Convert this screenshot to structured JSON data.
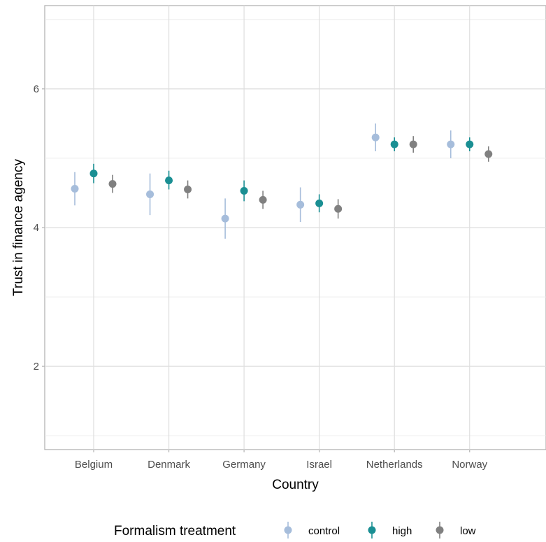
{
  "chart_data": {
    "type": "scatter",
    "title": "",
    "xlabel": "Country",
    "ylabel": "Trust in finance agency",
    "categories": [
      "Belgium",
      "Denmark",
      "Germany",
      "Israel",
      "Netherlands",
      "Norway"
    ],
    "ylim": [
      0.8,
      7.2
    ],
    "yticks": [
      2,
      4,
      6
    ],
    "grid": true,
    "legend": {
      "title": "Formalism treatment",
      "position": "bottom"
    },
    "series": [
      {
        "name": "control",
        "color": "#a6bddb",
        "values": [
          4.56,
          4.48,
          4.13,
          4.33,
          5.3,
          5.2
        ],
        "lower": [
          4.32,
          4.18,
          3.84,
          4.08,
          5.1,
          5.0
        ],
        "upper": [
          4.8,
          4.78,
          4.42,
          4.58,
          5.5,
          5.4
        ]
      },
      {
        "name": "high",
        "color": "#1a8f93",
        "values": [
          4.78,
          4.68,
          4.53,
          4.35,
          5.2,
          5.2
        ],
        "lower": [
          4.64,
          4.55,
          4.38,
          4.22,
          5.1,
          5.1
        ],
        "upper": [
          4.92,
          4.82,
          4.68,
          4.48,
          5.3,
          5.3
        ]
      },
      {
        "name": "low",
        "color": "#808080",
        "values": [
          4.63,
          4.55,
          4.4,
          4.27,
          5.2,
          5.06
        ],
        "lower": [
          4.5,
          4.42,
          4.27,
          4.13,
          5.08,
          4.95
        ],
        "upper": [
          4.76,
          4.68,
          4.53,
          4.41,
          5.32,
          5.17
        ]
      }
    ]
  }
}
